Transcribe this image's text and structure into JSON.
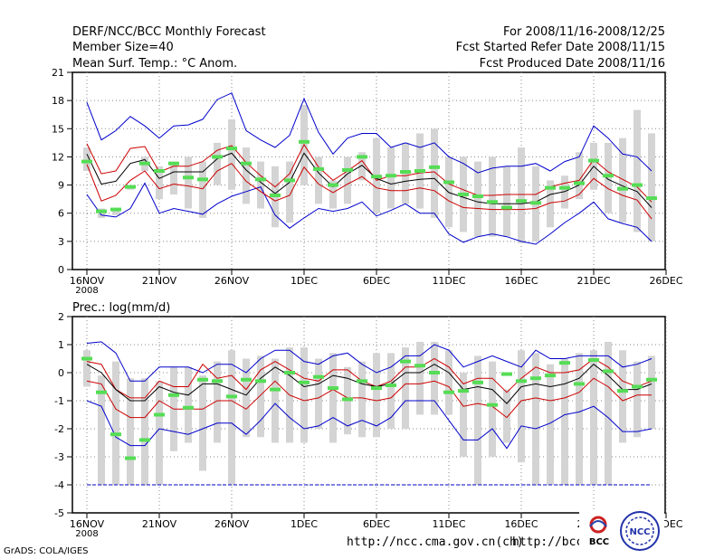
{
  "header": {
    "title": "DERF/NCC/BCC Monthly Forecast",
    "member_size": "Member Size=40",
    "variable": "Mean Surf. Temp.: °C Anom.",
    "period": "For 2008/11/16-2008/12/25",
    "started": "Fcst Started Refer Date 2008/11/15",
    "produced": "Fcst Produced Date 2008/11/16"
  },
  "footer": {
    "credit": "GrADS: COLA/IGES",
    "url1": "http://ncc.cma.gov.cn(ch)",
    "url2": "http://bcc.c",
    "logo_bcc": "BCC",
    "logo_ncc": "NCC"
  },
  "colors": {
    "envelope": "#0000cc",
    "spread": "#cc0000",
    "mean": "#000000",
    "box": "#d4d4d4",
    "median": "#55dd55",
    "grid": "#888888"
  },
  "chart_data": [
    {
      "type": "line",
      "title": "Mean Surf. Temp.: °C Anom.",
      "xlabel": "",
      "ylabel": "",
      "x_tick_labels": [
        "16NOV",
        "21NOV",
        "26NOV",
        "1DEC",
        "6DEC",
        "11DEC",
        "16DEC",
        "21DEC",
        "26DEC"
      ],
      "x_year_label": "2008",
      "ylim": [
        0,
        21
      ],
      "yticks": [
        0,
        3,
        6,
        9,
        12,
        15,
        18,
        21
      ],
      "grid": true,
      "days": 40,
      "series": [
        {
          "name": "max",
          "values": [
            17.8,
            13.8,
            14.8,
            16.3,
            15.3,
            14.0,
            15.3,
            15.4,
            16.0,
            18.1,
            18.8,
            14.8,
            13.8,
            13.0,
            14.3,
            18.2,
            14.6,
            12.3,
            14.0,
            14.5,
            14.5,
            13.0,
            13.5,
            13.0,
            13.5,
            12.0,
            11.3,
            10.3,
            10.8,
            11.0,
            11.0,
            11.3,
            10.5,
            11.5,
            12.0,
            15.3,
            14.0,
            12.3,
            12.0,
            10.5
          ]
        },
        {
          "name": "upper",
          "values": [
            13.4,
            10.2,
            10.5,
            12.9,
            13.1,
            10.4,
            11.0,
            11.0,
            11.5,
            12.7,
            13.2,
            11.4,
            10.0,
            8.8,
            10.2,
            13.3,
            10.9,
            9.5,
            10.5,
            11.6,
            9.5,
            10.0,
            10.0,
            10.3,
            10.4,
            9.1,
            8.5,
            7.9,
            7.9,
            8.0,
            8.0,
            8.0,
            8.8,
            9.2,
            9.5,
            11.7,
            10.4,
            9.6,
            8.8,
            7.2
          ]
        },
        {
          "name": "mean",
          "values": [
            12.3,
            9.1,
            9.4,
            11.3,
            11.7,
            9.7,
            10.4,
            10.4,
            10.4,
            11.8,
            12.4,
            10.6,
            9.3,
            8.1,
            9.3,
            12.4,
            10.3,
            8.8,
            10.2,
            11.1,
            9.7,
            9.1,
            9.4,
            9.6,
            9.7,
            8.2,
            7.7,
            7.2,
            7.0,
            7.0,
            7.0,
            7.2,
            8.0,
            8.3,
            9.0,
            11.0,
            9.6,
            8.9,
            8.3,
            6.6
          ]
        },
        {
          "name": "lower",
          "values": [
            11.2,
            7.3,
            7.9,
            9.5,
            10.5,
            8.6,
            9.1,
            8.9,
            8.6,
            10.5,
            11.3,
            9.4,
            8.3,
            7.3,
            7.9,
            10.9,
            9.1,
            8.2,
            9.1,
            9.9,
            8.7,
            8.4,
            8.4,
            8.7,
            8.4,
            7.3,
            6.6,
            6.5,
            6.4,
            6.4,
            6.4,
            6.5,
            7.1,
            7.3,
            8.0,
            9.7,
            8.6,
            7.9,
            7.4,
            5.4
          ]
        },
        {
          "name": "min",
          "values": [
            8.0,
            5.8,
            5.6,
            6.5,
            9.2,
            6.0,
            6.5,
            6.2,
            5.9,
            7.0,
            7.8,
            8.3,
            8.8,
            5.8,
            4.4,
            5.5,
            6.5,
            6.2,
            6.5,
            7.2,
            5.7,
            6.3,
            7.0,
            6.0,
            6.0,
            3.8,
            2.9,
            3.5,
            3.8,
            3.5,
            3.0,
            2.7,
            3.8,
            5.0,
            6.0,
            7.2,
            5.4,
            4.9,
            4.5,
            3.0
          ]
        },
        {
          "name": "box_top",
          "values": [
            13.0,
            6.5,
            6.5,
            9.0,
            12.0,
            11.0,
            11.5,
            12.0,
            11.5,
            13.5,
            16.0,
            13.0,
            11.5,
            11.0,
            11.5,
            17.5,
            12.0,
            9.5,
            12.0,
            12.5,
            14.0,
            13.0,
            13.5,
            14.5,
            15.0,
            12.0,
            12.0,
            11.5,
            12.0,
            11.0,
            13.0,
            11.0,
            9.5,
            10.0,
            12.5,
            13.5,
            13.5,
            14.0,
            17.0,
            14.5
          ]
        },
        {
          "name": "box_bottom",
          "values": [
            10.5,
            5.5,
            5.8,
            8.5,
            10.5,
            7.5,
            8.0,
            6.5,
            5.5,
            9.0,
            8.5,
            7.0,
            6.5,
            4.5,
            5.0,
            9.0,
            7.0,
            6.5,
            7.0,
            9.5,
            6.0,
            6.5,
            7.0,
            6.5,
            5.5,
            4.5,
            4.0,
            3.5,
            3.5,
            3.5,
            2.8,
            3.0,
            4.5,
            6.5,
            7.5,
            8.5,
            6.0,
            5.0,
            4.0,
            3.0
          ]
        },
        {
          "name": "median",
          "values": [
            11.5,
            6.2,
            6.4,
            8.8,
            11.3,
            10.5,
            11.3,
            9.8,
            9.6,
            12.0,
            12.9,
            11.3,
            9.6,
            7.9,
            9.5,
            13.6,
            10.7,
            9.0,
            10.6,
            12.0,
            9.9,
            10.0,
            10.4,
            10.5,
            10.9,
            9.3,
            8.0,
            7.8,
            7.2,
            6.6,
            7.3,
            7.1,
            8.7,
            8.7,
            9.2,
            11.6,
            10.0,
            8.6,
            9.0,
            7.6
          ]
        }
      ]
    },
    {
      "type": "line",
      "title": "Prec.: log(mm/d)",
      "xlabel": "",
      "ylabel": "",
      "x_tick_labels": [
        "16NOV",
        "21NOV",
        "26NOV",
        "1DEC",
        "6DEC",
        "11DEC",
        "16DEC",
        "21DEC",
        "26DEC"
      ],
      "x_year_label": "2008",
      "ylim": [
        -5,
        2
      ],
      "yticks": [
        -5,
        -4,
        -3,
        -2,
        -1,
        0,
        1,
        2
      ],
      "grid": true,
      "days": 40,
      "series": [
        {
          "name": "max",
          "values": [
            1.05,
            1.1,
            0.7,
            -0.3,
            -0.3,
            0.2,
            0.2,
            0.2,
            0.0,
            0.3,
            0.3,
            0.0,
            0.5,
            0.8,
            0.8,
            0.4,
            0.3,
            0.6,
            0.7,
            0.3,
            0.0,
            0.2,
            0.6,
            0.6,
            1.0,
            0.8,
            0.2,
            0.4,
            0.6,
            0.4,
            0.2,
            0.8,
            0.5,
            0.5,
            0.6,
            0.6,
            0.6,
            0.2,
            0.3,
            0.5
          ]
        },
        {
          "name": "upper",
          "values": [
            0.4,
            0.3,
            -0.6,
            -0.9,
            -0.9,
            -0.3,
            -0.5,
            -0.5,
            0.3,
            -0.2,
            -0.1,
            -0.6,
            0.1,
            0.4,
            0.1,
            -0.2,
            -0.3,
            0.1,
            0.1,
            -0.3,
            -0.5,
            -0.3,
            0.2,
            0.2,
            0.5,
            0.2,
            -0.4,
            -0.2,
            -0.2,
            -0.7,
            -0.2,
            0.2,
            0.0,
            0.0,
            0.1,
            0.5,
            0.2,
            -0.3,
            -0.5,
            -0.3
          ]
        },
        {
          "name": "mean",
          "values": [
            0.3,
            0.0,
            -0.6,
            -1.0,
            -1.0,
            -0.5,
            -0.7,
            -0.8,
            -0.4,
            -0.4,
            -0.6,
            -0.8,
            -0.2,
            0.2,
            -0.1,
            -0.5,
            -0.4,
            -0.1,
            -0.2,
            -0.4,
            -0.5,
            -0.4,
            0.0,
            0.0,
            0.3,
            0.0,
            -0.6,
            -0.5,
            -0.6,
            -1.1,
            -0.5,
            -0.4,
            -0.5,
            -0.4,
            -0.2,
            0.3,
            -0.1,
            -0.6,
            -0.6,
            -0.4
          ]
        },
        {
          "name": "lower",
          "values": [
            -0.3,
            -0.4,
            -1.3,
            -1.6,
            -1.6,
            -1.0,
            -1.3,
            -1.3,
            -1.3,
            -1.0,
            -1.0,
            -1.3,
            -0.8,
            -0.3,
            -0.8,
            -1.0,
            -0.9,
            -0.6,
            -0.9,
            -0.9,
            -1.0,
            -0.9,
            -0.4,
            -0.4,
            -0.3,
            -0.5,
            -1.2,
            -1.1,
            -1.2,
            -1.6,
            -1.0,
            -0.9,
            -1.0,
            -0.9,
            -0.7,
            -0.2,
            -0.5,
            -1.0,
            -0.8,
            -0.8
          ]
        },
        {
          "name": "min",
          "values": [
            -1.0,
            -1.2,
            -2.3,
            -2.6,
            -2.6,
            -2.0,
            -2.1,
            -2.2,
            -2.0,
            -1.8,
            -1.8,
            -2.2,
            -1.7,
            -1.1,
            -1.6,
            -2.0,
            -1.9,
            -1.6,
            -1.9,
            -1.7,
            -1.9,
            -1.6,
            -1.0,
            -1.0,
            -1.0,
            -1.7,
            -2.4,
            -2.4,
            -2.0,
            -2.7,
            -1.9,
            -2.0,
            -1.8,
            -1.5,
            -1.4,
            -1.2,
            -1.6,
            -2.1,
            -2.1,
            -2.0
          ]
        },
        {
          "name": "box_top",
          "values": [
            0.8,
            -0.1,
            0.4,
            -0.2,
            -0.2,
            -0.3,
            0.2,
            0.2,
            -0.1,
            0.4,
            0.8,
            0.5,
            0.6,
            0.5,
            0.9,
            0.9,
            0.5,
            0.7,
            0.2,
            0.4,
            0.7,
            0.7,
            0.9,
            1.1,
            1.1,
            0.8,
            0.0,
            0.6,
            0.4,
            -0.6,
            0.8,
            0.7,
            0.3,
            0.5,
            0.7,
            0.8,
            1.1,
            0.8,
            0.4,
            0.6
          ]
        },
        {
          "name": "box_bottom",
          "values": [
            -0.5,
            -4.0,
            -4.0,
            -4.0,
            -4.0,
            -4.0,
            -2.8,
            -2.5,
            -3.5,
            -2.5,
            -4.0,
            -2.3,
            -2.3,
            -2.5,
            -2.5,
            -2.5,
            -2.0,
            -2.5,
            -2.2,
            -2.3,
            -2.3,
            -2.0,
            -2.0,
            -1.5,
            -1.5,
            -1.5,
            -3.0,
            -4.0,
            -3.0,
            -2.5,
            -3.2,
            -4.0,
            -4.0,
            -4.0,
            -4.0,
            -4.0,
            -4.0,
            -2.5,
            -2.3,
            -2.0
          ]
        },
        {
          "name": "median",
          "values": [
            0.5,
            -0.7,
            -2.2,
            -3.05,
            -2.4,
            -1.5,
            -0.8,
            -1.25,
            -0.25,
            -0.3,
            -0.85,
            -0.25,
            -0.3,
            -0.6,
            0.0,
            -0.35,
            -0.15,
            -0.55,
            -0.95,
            -0.3,
            -0.55,
            -0.45,
            0.4,
            0.25,
            0.0,
            -0.7,
            -0.65,
            -0.35,
            -1.15,
            -0.05,
            -0.3,
            -0.2,
            -0.1,
            0.35,
            -0.4,
            0.45,
            0.05,
            -0.65,
            -0.5,
            -0.25
          ]
        },
        {
          "name": "floor",
          "values": [
            -4.0,
            -4.0,
            -4.0,
            -4.0,
            -4.0,
            -4.0,
            -4.0,
            -4.0,
            -4.0,
            -4.0,
            -4.0,
            -4.0,
            -4.0,
            -4.0,
            -4.0,
            -4.0,
            -4.0,
            -4.0,
            -4.0,
            -4.0,
            -4.0,
            -4.0,
            -4.0,
            -4.0,
            -4.0,
            -4.0,
            -4.0,
            -4.0,
            -4.0,
            -4.0,
            -4.0,
            -4.0,
            -4.0,
            -4.0,
            -4.0,
            -4.0,
            -4.0,
            -4.0,
            -4.0,
            -4.0
          ]
        }
      ]
    }
  ]
}
